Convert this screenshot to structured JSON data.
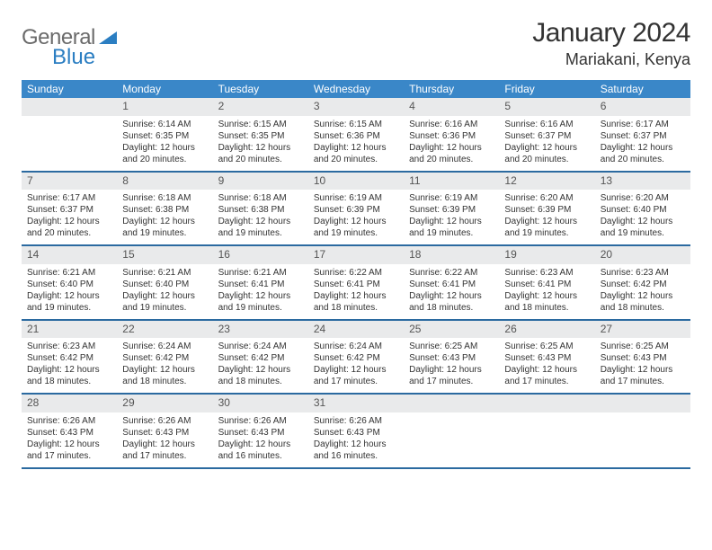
{
  "logo": {
    "part1": "General",
    "part2": "Blue"
  },
  "title": "January 2024",
  "location": "Mariakani, Kenya",
  "colors": {
    "header_bg": "#3a87c8",
    "header_text": "#ffffff",
    "daynum_bg": "#e9eaeb",
    "row_border": "#2b6aa0",
    "text": "#333333",
    "logo_gray": "#6b6b6b",
    "logo_blue": "#2b7ec2"
  },
  "day_headers": [
    "Sunday",
    "Monday",
    "Tuesday",
    "Wednesday",
    "Thursday",
    "Friday",
    "Saturday"
  ],
  "weeks": [
    [
      {
        "num": "",
        "sunrise": "",
        "sunset": "",
        "daylight": ""
      },
      {
        "num": "1",
        "sunrise": "Sunrise: 6:14 AM",
        "sunset": "Sunset: 6:35 PM",
        "daylight": "Daylight: 12 hours and 20 minutes."
      },
      {
        "num": "2",
        "sunrise": "Sunrise: 6:15 AM",
        "sunset": "Sunset: 6:35 PM",
        "daylight": "Daylight: 12 hours and 20 minutes."
      },
      {
        "num": "3",
        "sunrise": "Sunrise: 6:15 AM",
        "sunset": "Sunset: 6:36 PM",
        "daylight": "Daylight: 12 hours and 20 minutes."
      },
      {
        "num": "4",
        "sunrise": "Sunrise: 6:16 AM",
        "sunset": "Sunset: 6:36 PM",
        "daylight": "Daylight: 12 hours and 20 minutes."
      },
      {
        "num": "5",
        "sunrise": "Sunrise: 6:16 AM",
        "sunset": "Sunset: 6:37 PM",
        "daylight": "Daylight: 12 hours and 20 minutes."
      },
      {
        "num": "6",
        "sunrise": "Sunrise: 6:17 AM",
        "sunset": "Sunset: 6:37 PM",
        "daylight": "Daylight: 12 hours and 20 minutes."
      }
    ],
    [
      {
        "num": "7",
        "sunrise": "Sunrise: 6:17 AM",
        "sunset": "Sunset: 6:37 PM",
        "daylight": "Daylight: 12 hours and 20 minutes."
      },
      {
        "num": "8",
        "sunrise": "Sunrise: 6:18 AM",
        "sunset": "Sunset: 6:38 PM",
        "daylight": "Daylight: 12 hours and 19 minutes."
      },
      {
        "num": "9",
        "sunrise": "Sunrise: 6:18 AM",
        "sunset": "Sunset: 6:38 PM",
        "daylight": "Daylight: 12 hours and 19 minutes."
      },
      {
        "num": "10",
        "sunrise": "Sunrise: 6:19 AM",
        "sunset": "Sunset: 6:39 PM",
        "daylight": "Daylight: 12 hours and 19 minutes."
      },
      {
        "num": "11",
        "sunrise": "Sunrise: 6:19 AM",
        "sunset": "Sunset: 6:39 PM",
        "daylight": "Daylight: 12 hours and 19 minutes."
      },
      {
        "num": "12",
        "sunrise": "Sunrise: 6:20 AM",
        "sunset": "Sunset: 6:39 PM",
        "daylight": "Daylight: 12 hours and 19 minutes."
      },
      {
        "num": "13",
        "sunrise": "Sunrise: 6:20 AM",
        "sunset": "Sunset: 6:40 PM",
        "daylight": "Daylight: 12 hours and 19 minutes."
      }
    ],
    [
      {
        "num": "14",
        "sunrise": "Sunrise: 6:21 AM",
        "sunset": "Sunset: 6:40 PM",
        "daylight": "Daylight: 12 hours and 19 minutes."
      },
      {
        "num": "15",
        "sunrise": "Sunrise: 6:21 AM",
        "sunset": "Sunset: 6:40 PM",
        "daylight": "Daylight: 12 hours and 19 minutes."
      },
      {
        "num": "16",
        "sunrise": "Sunrise: 6:21 AM",
        "sunset": "Sunset: 6:41 PM",
        "daylight": "Daylight: 12 hours and 19 minutes."
      },
      {
        "num": "17",
        "sunrise": "Sunrise: 6:22 AM",
        "sunset": "Sunset: 6:41 PM",
        "daylight": "Daylight: 12 hours and 18 minutes."
      },
      {
        "num": "18",
        "sunrise": "Sunrise: 6:22 AM",
        "sunset": "Sunset: 6:41 PM",
        "daylight": "Daylight: 12 hours and 18 minutes."
      },
      {
        "num": "19",
        "sunrise": "Sunrise: 6:23 AM",
        "sunset": "Sunset: 6:41 PM",
        "daylight": "Daylight: 12 hours and 18 minutes."
      },
      {
        "num": "20",
        "sunrise": "Sunrise: 6:23 AM",
        "sunset": "Sunset: 6:42 PM",
        "daylight": "Daylight: 12 hours and 18 minutes."
      }
    ],
    [
      {
        "num": "21",
        "sunrise": "Sunrise: 6:23 AM",
        "sunset": "Sunset: 6:42 PM",
        "daylight": "Daylight: 12 hours and 18 minutes."
      },
      {
        "num": "22",
        "sunrise": "Sunrise: 6:24 AM",
        "sunset": "Sunset: 6:42 PM",
        "daylight": "Daylight: 12 hours and 18 minutes."
      },
      {
        "num": "23",
        "sunrise": "Sunrise: 6:24 AM",
        "sunset": "Sunset: 6:42 PM",
        "daylight": "Daylight: 12 hours and 18 minutes."
      },
      {
        "num": "24",
        "sunrise": "Sunrise: 6:24 AM",
        "sunset": "Sunset: 6:42 PM",
        "daylight": "Daylight: 12 hours and 17 minutes."
      },
      {
        "num": "25",
        "sunrise": "Sunrise: 6:25 AM",
        "sunset": "Sunset: 6:43 PM",
        "daylight": "Daylight: 12 hours and 17 minutes."
      },
      {
        "num": "26",
        "sunrise": "Sunrise: 6:25 AM",
        "sunset": "Sunset: 6:43 PM",
        "daylight": "Daylight: 12 hours and 17 minutes."
      },
      {
        "num": "27",
        "sunrise": "Sunrise: 6:25 AM",
        "sunset": "Sunset: 6:43 PM",
        "daylight": "Daylight: 12 hours and 17 minutes."
      }
    ],
    [
      {
        "num": "28",
        "sunrise": "Sunrise: 6:26 AM",
        "sunset": "Sunset: 6:43 PM",
        "daylight": "Daylight: 12 hours and 17 minutes."
      },
      {
        "num": "29",
        "sunrise": "Sunrise: 6:26 AM",
        "sunset": "Sunset: 6:43 PM",
        "daylight": "Daylight: 12 hours and 17 minutes."
      },
      {
        "num": "30",
        "sunrise": "Sunrise: 6:26 AM",
        "sunset": "Sunset: 6:43 PM",
        "daylight": "Daylight: 12 hours and 16 minutes."
      },
      {
        "num": "31",
        "sunrise": "Sunrise: 6:26 AM",
        "sunset": "Sunset: 6:43 PM",
        "daylight": "Daylight: 12 hours and 16 minutes."
      },
      {
        "num": "",
        "sunrise": "",
        "sunset": "",
        "daylight": ""
      },
      {
        "num": "",
        "sunrise": "",
        "sunset": "",
        "daylight": ""
      },
      {
        "num": "",
        "sunrise": "",
        "sunset": "",
        "daylight": ""
      }
    ]
  ]
}
